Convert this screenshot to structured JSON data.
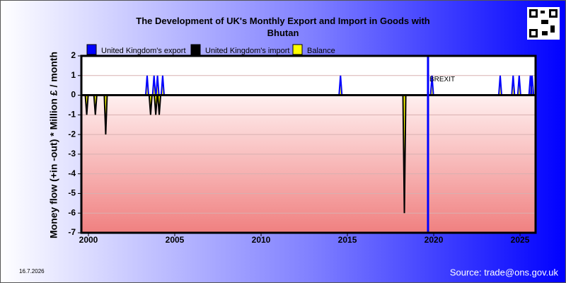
{
  "chart_data": {
    "type": "spike",
    "title": "The Development of UK's Monthly Export and Import in Goods with Bhutan",
    "y_label": "Money flow (+in -out) * Million £ / month",
    "xlim": [
      1999.59,
      2025.9
    ],
    "ylim": [
      -7,
      2
    ],
    "xticks": [
      2000,
      2005,
      2010,
      2015,
      2020,
      2025
    ],
    "yticks": [
      -7,
      -6,
      -5,
      -4,
      -3,
      -2,
      -1,
      0,
      1,
      2
    ],
    "series": [
      {
        "name": "Balance",
        "color": "#ffff00",
        "x": [
          1999.9,
          2000.4,
          2001.0,
          2003.4,
          2003.6,
          2003.8,
          2003.9,
          2004.0,
          2004.1,
          2004.3,
          2014.6,
          2018.3,
          2019.9,
          2023.85,
          2024.6,
          2024.95,
          2025.6,
          2025.7
        ],
        "values": [
          -1,
          -1,
          -2,
          1,
          -1,
          1,
          -1,
          1,
          -1,
          1,
          1,
          -6,
          1,
          1,
          1,
          1,
          1,
          1
        ]
      },
      {
        "name": "United Kingdom's import",
        "color": "#000000",
        "x": [
          1999.9,
          2000.4,
          2001.0,
          2003.6,
          2003.9,
          2004.1,
          2018.3
        ],
        "values": [
          -1,
          -1,
          -2,
          -1,
          -1,
          -1,
          -6
        ]
      },
      {
        "name": "United Kingdom's export",
        "color": "#0000ff",
        "x": [
          2003.4,
          2003.8,
          2004.0,
          2004.3,
          2014.6,
          2019.9,
          2023.85,
          2024.6,
          2024.95,
          2025.6,
          2025.7
        ],
        "values": [
          1,
          1,
          1,
          1,
          1,
          1,
          1,
          1,
          1,
          1,
          1
        ]
      }
    ],
    "legend_order": [
      2,
      1,
      0
    ],
    "annotations": [
      {
        "text": "BREXIT",
        "x": 2019.67,
        "color": "#0000ff"
      }
    ],
    "date": "16.7.2026",
    "source": "Source: trade@ons.gov.uk"
  }
}
